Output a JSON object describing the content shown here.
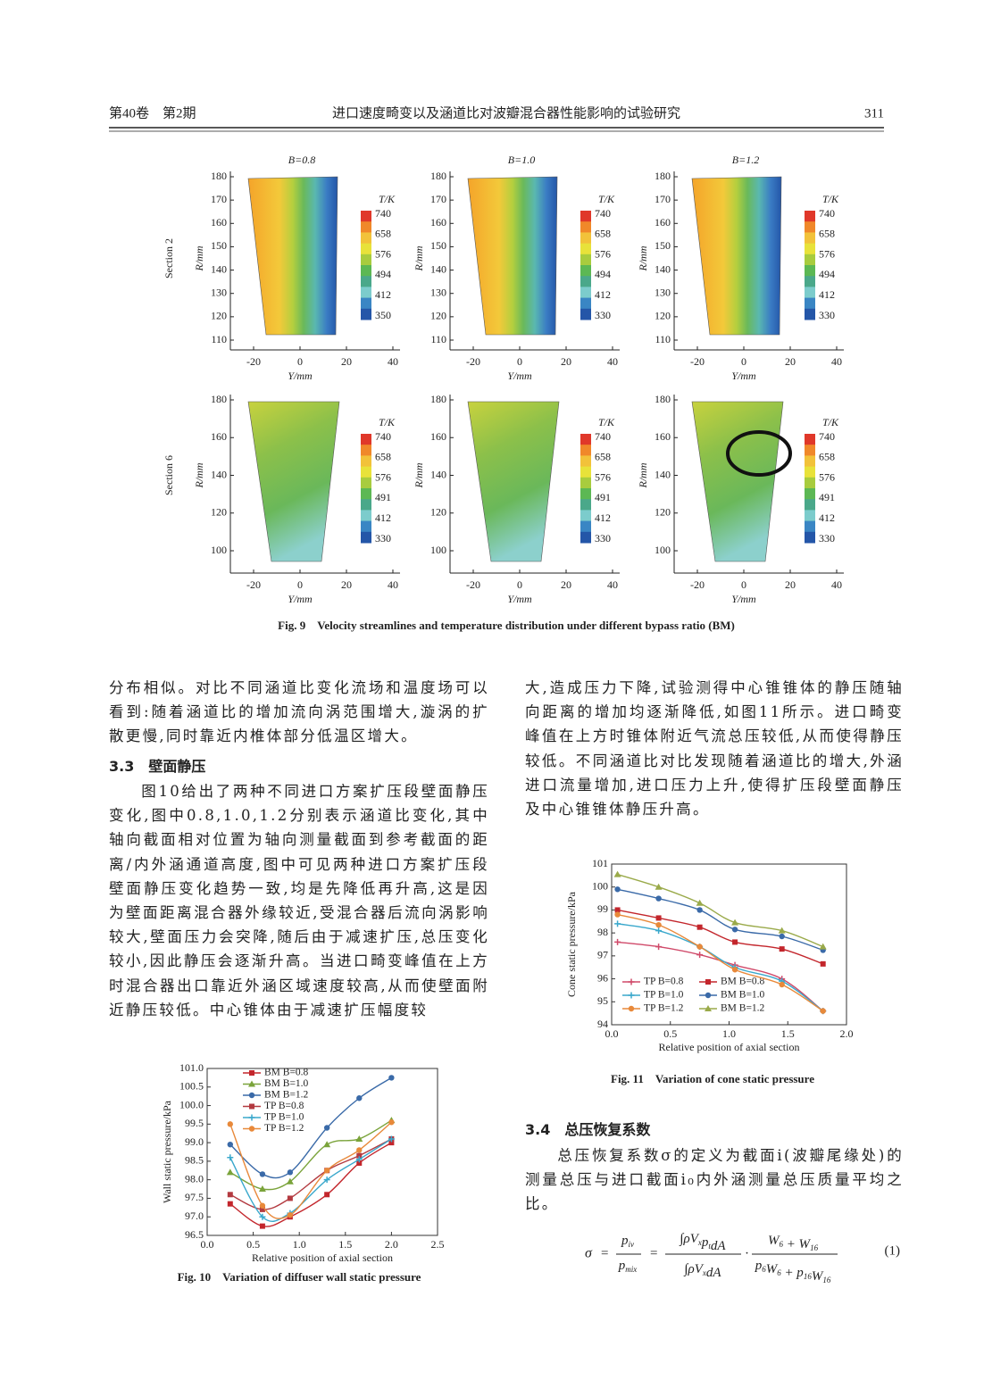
{
  "header": {
    "volume": "第40卷　第2期",
    "title": "进口速度畸变以及涵道比对波瓣混合器性能影响的试验研究",
    "page": "311"
  },
  "figure9": {
    "panel_titles": [
      "B=0.8",
      "B=1.0",
      "B=1.2"
    ],
    "row_labels": [
      "Section 2",
      "Section 6"
    ],
    "y_label": "R/mm",
    "x_label": "Y/mm",
    "colorbar_title": "T/K",
    "row_yticks": [
      [
        "180",
        "170",
        "160",
        "150",
        "140",
        "130",
        "120",
        "110"
      ],
      [
        "180",
        "160",
        "140",
        "120",
        "100"
      ]
    ],
    "xticks": [
      "-20",
      "0",
      "20",
      "40"
    ],
    "colorbar_labels": [
      [
        [
          "740",
          "658",
          "576",
          "494",
          "412",
          "350"
        ],
        [
          "740",
          "658",
          "576",
          "494",
          "412",
          "330"
        ],
        [
          "740",
          "658",
          "576",
          "494",
          "412",
          "330"
        ]
      ],
      [
        [
          "740",
          "658",
          "576",
          "491",
          "412",
          "330"
        ],
        [
          "740",
          "658",
          "576",
          "491",
          "412",
          "330"
        ],
        [
          "740",
          "658",
          "576",
          "491",
          "412",
          "330"
        ]
      ]
    ],
    "caption": "Fig. 9　Velocity streamlines and temperature distribution under different bypass ratio (BM)"
  },
  "body": {
    "left_p1": "分布相似。对比不同涵道比变化流场和温度场可以看到:随着涵道比的增加流向涡范围增大,漩涡的扩散更慢,同时靠近内椎体部分低温区增大。",
    "heading_33": "3.3　壁面静压",
    "left_p2": "图10给出了两种不同进口方案扩压段壁面静压变化,图中0.8,1.0,1.2分别表示涵道比变化,其中轴向截面相对位置为轴向测量截面到参考截面的距离/内外涵通道高度,图中可见两种进口方案扩压段壁面静压变化趋势一致,均是先降低再升高,这是因为壁面距离混合器外缘较近,受混合器后流向涡影响较大,壁面压力会突降,随后由于减速扩压,总压变化较小,因此静压会逐渐升高。当进口畸变峰值在上方时混合器出口靠近外涵区域速度较高,从而使壁面附近静压较低。中心锥体由于减速扩压幅度较",
    "right_p1": "大,造成压力下降,试验测得中心锥锥体的静压随轴向距离的增加均逐渐降低,如图11所示。进口畸变峰值在上方时锥体附近气流总压较低,从而使得静压较低。不同涵道比对比发现随着涵道比的增大,外涵进口流量增加,进口压力上升,使得扩压段壁面静压及中心锥锥体静压升高。",
    "heading_34": "3.4　总压恢复系数",
    "right_p2": "总压恢复系数σ的定义为截面i(波瓣尾缘处)的测量总压与进口截面i₀内外涵测量总压质量平均之比。"
  },
  "equation": {
    "lhs": "σ",
    "eq": "=",
    "num1": [
      {
        "t": "p",
        "s": "iv"
      }
    ],
    "den1": [
      {
        "t": "p",
        "s": "mix"
      }
    ],
    "num2": [
      {
        "t": "∫ρV",
        "s": "x"
      },
      {
        "t": "p",
        "s": "t"
      },
      {
        "t": "dA"
      }
    ],
    "den2": [
      {
        "t": "∫ρV",
        "s": "x"
      },
      {
        "t": "dA"
      }
    ],
    "dot": "·",
    "num3": [
      {
        "t": "W",
        "s": "6"
      },
      {
        "t": " + W",
        "s": "16"
      }
    ],
    "den3": [
      {
        "t": "p",
        "s": "6"
      },
      {
        "t": "W",
        "s": "6"
      },
      {
        "t": " + p",
        "s": "16"
      },
      {
        "t": "W",
        "s": "16"
      }
    ],
    "number": "(1)"
  },
  "chart_data": [
    {
      "type": "line",
      "title": "Fig. 10　Variation of diffuser wall static pressure",
      "x_label": "Relative position of axial section",
      "y_label": "Wall static pressure/kPa",
      "xlim": [
        0,
        2.5
      ],
      "xticks": [
        {
          "value": 0,
          "label": "0.0"
        },
        0.5,
        {
          "value": 1,
          "label": "1.0"
        },
        1.5,
        {
          "value": 2,
          "label": "2.0"
        },
        2.5
      ],
      "ylim": [
        96.5,
        101
      ],
      "yticks": [
        96.5,
        {
          "value": 97,
          "label": "97.0"
        },
        97.5,
        {
          "value": 98,
          "label": "98.0"
        },
        98.5,
        {
          "value": 99,
          "label": "99.0"
        },
        99.5,
        {
          "value": 100,
          "label": "100.0"
        },
        100.5,
        {
          "value": 101,
          "label": "101.0"
        }
      ],
      "legend": "top",
      "x": [
        0.25,
        0.6,
        0.9,
        1.3,
        1.65,
        2.0
      ],
      "series": [
        {
          "name": "BM B=0.8",
          "color": "#c3262c",
          "marker": "square",
          "values": [
            97.35,
            96.75,
            97.0,
            97.6,
            98.45,
            99.0
          ]
        },
        {
          "name": "BM B=1.0",
          "color": "#7aa33a",
          "marker": "triangle",
          "values": [
            98.2,
            97.75,
            97.95,
            98.95,
            99.1,
            99.6
          ]
        },
        {
          "name": "BM B=1.2",
          "color": "#3a6aa8",
          "marker": "circle",
          "values": [
            98.95,
            98.15,
            98.2,
            99.4,
            100.2,
            100.75
          ]
        },
        {
          "name": "TP B=0.8",
          "color": "#b33a40",
          "marker": "square",
          "values": [
            97.6,
            97.2,
            97.5,
            98.25,
            98.65,
            99.1
          ]
        },
        {
          "name": "TP B=1.0",
          "color": "#3aa8cc",
          "marker": "plus",
          "values": [
            98.6,
            97.0,
            97.1,
            98.0,
            98.55,
            99.1
          ]
        },
        {
          "name": "TP B=1.2",
          "color": "#e8893a",
          "marker": "circle",
          "values": [
            99.5,
            97.3,
            97.05,
            98.25,
            98.8,
            99.55
          ]
        }
      ]
    },
    {
      "type": "line",
      "title": "Fig. 11　Variation of cone static pressure",
      "x_label": "Relative position of axial section",
      "y_label": "Cone static pressure/kPa",
      "xlim": [
        0,
        2
      ],
      "xticks": [
        {
          "value": 0,
          "label": "0.0"
        },
        0.5,
        {
          "value": 1,
          "label": "1.0"
        },
        1.5,
        {
          "value": 2,
          "label": "2.0"
        }
      ],
      "ylim": [
        94,
        101
      ],
      "yticks": [
        94,
        95,
        96,
        97,
        98,
        99,
        100,
        101
      ],
      "legend": "bottom-left",
      "x": [
        0.05,
        0.4,
        0.75,
        1.05,
        1.45,
        1.8
      ],
      "series": [
        {
          "name": "TP B=0.8",
          "color": "#d04a6a",
          "marker": "plus",
          "values": [
            97.6,
            97.4,
            97.05,
            96.6,
            96.0,
            94.6
          ]
        },
        {
          "name": "BM B=0.8",
          "color": "#c3262c",
          "marker": "square",
          "values": [
            99.0,
            98.65,
            98.25,
            97.6,
            97.3,
            96.65
          ]
        },
        {
          "name": "TP B=1.0",
          "color": "#3aa8cc",
          "marker": "plus",
          "values": [
            98.4,
            98.1,
            97.4,
            96.5,
            95.9,
            94.6
          ]
        },
        {
          "name": "BM B=1.0",
          "color": "#3a6aa8",
          "marker": "circle",
          "values": [
            99.9,
            99.5,
            99.0,
            98.15,
            97.85,
            97.25
          ]
        },
        {
          "name": "TP B=1.2",
          "color": "#e8893a",
          "marker": "circle",
          "values": [
            98.8,
            98.35,
            97.4,
            96.4,
            95.75,
            94.6
          ]
        },
        {
          "name": "BM B=1.2",
          "color": "#9aaa4a",
          "marker": "triangle",
          "values": [
            100.55,
            100.0,
            99.3,
            98.45,
            98.1,
            97.4
          ]
        }
      ]
    }
  ]
}
